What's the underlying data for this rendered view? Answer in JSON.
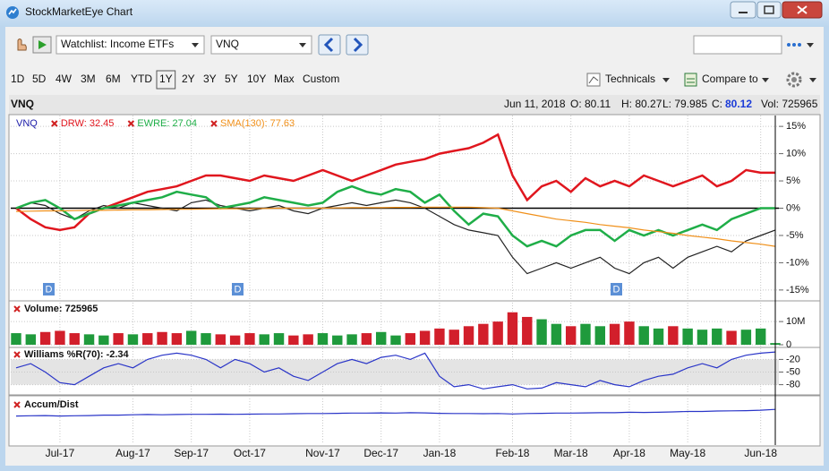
{
  "window": {
    "title": "StockMarketEye Chart"
  },
  "toolbar": {
    "watchlist": "Watchlist: Income ETFs",
    "symbol": "VNQ",
    "ranges": [
      "1D",
      "5D",
      "4W",
      "3M",
      "6M",
      "YTD",
      "1Y",
      "2Y",
      "3Y",
      "5Y",
      "10Y",
      "Max",
      "Custom"
    ],
    "selected_range": "1Y",
    "technicals": "Technicals",
    "compare": "Compare to"
  },
  "quote": {
    "symbol": "VNQ",
    "date": "Jun 11, 2018",
    "open": "O: 80.11",
    "high": "H: 80.27",
    "low": "L: 79.985",
    "close_label": "C:",
    "close": "80.12",
    "volume": "Vol: 725965"
  },
  "dividend_label": "D",
  "chart_data": {
    "categories": [
      null,
      null,
      null,
      "Jul-17",
      null,
      null,
      null,
      null,
      "Aug-17",
      null,
      null,
      null,
      "Sep-17",
      null,
      null,
      null,
      "Oct-17",
      null,
      null,
      null,
      null,
      "Nov-17",
      null,
      null,
      null,
      "Dec-17",
      null,
      null,
      null,
      "Jan-18",
      null,
      null,
      null,
      null,
      "Feb-18",
      null,
      null,
      null,
      "Mar-18",
      null,
      null,
      null,
      "Apr-18",
      null,
      null,
      null,
      "May-18",
      null,
      null,
      null,
      null,
      "Jun-18",
      null
    ],
    "panels": [
      {
        "type": "line",
        "ylim": [
          -16.5,
          16.5
        ],
        "grid": true,
        "yticks": [
          {
            "value": 15,
            "label": "15%"
          },
          {
            "value": 10,
            "label": "10%"
          },
          {
            "value": 5,
            "label": "5%"
          },
          {
            "value": 0,
            "label": "0%"
          },
          {
            "value": -5,
            "label": "-5%"
          },
          {
            "value": -10,
            "label": "-10%"
          },
          {
            "value": -15,
            "label": "-15%"
          }
        ],
        "series": [
          {
            "name": "VNQ",
            "color": "#222222",
            "label_color": "#1a1aa8",
            "values": [
              0,
              1,
              0.5,
              -1,
              -2,
              -0.5,
              0.5,
              0,
              1,
              0.5,
              0,
              -0.5,
              1,
              1.5,
              0.5,
              0,
              -0.5,
              0,
              0.5,
              -0.5,
              -1,
              0,
              0.5,
              1,
              0.5,
              1,
              1.5,
              1,
              0,
              -1.5,
              -3,
              -4,
              -4.5,
              -5,
              -9,
              -12,
              -11,
              -10,
              -11,
              -10,
              -9,
              -11,
              -12,
              -10,
              -9,
              -11,
              -9,
              -8,
              -7,
              -8,
              -6,
              -5,
              -4
            ]
          },
          {
            "name": "DRW: 32.45",
            "color": "#e0161e",
            "values": [
              0,
              -2,
              -3.5,
              -4,
              -3.5,
              -1,
              0,
              1,
              2,
              3,
              3.5,
              4,
              5,
              6,
              6,
              5.5,
              5,
              6,
              5.5,
              5,
              6,
              7,
              6,
              5,
              6,
              7,
              8,
              8.5,
              9,
              10,
              10.5,
              11,
              12,
              13.5,
              6,
              1.5,
              4,
              5,
              3,
              5.5,
              4,
              5,
              4,
              6,
              5,
              4,
              5,
              6,
              4,
              5,
              7,
              6.5,
              6.5
            ]
          },
          {
            "name": "EWRE: 27.04",
            "color": "#1fae48",
            "values": [
              0,
              1,
              1.5,
              0,
              -2,
              -1,
              0,
              0.5,
              1,
              1.5,
              2,
              3,
              2.5,
              2,
              0,
              0.5,
              1,
              2,
              1.5,
              1,
              0.5,
              1,
              3,
              4,
              3,
              2.5,
              3.5,
              3,
              1,
              2.5,
              -0.5,
              -3,
              -1,
              -1.5,
              -5,
              -7,
              -6,
              -7,
              -5,
              -4,
              -4,
              -6,
              -4,
              -5,
              -4,
              -5,
              -4,
              -3,
              -4,
              -2,
              -1,
              0,
              0
            ]
          },
          {
            "name": "SMA(130): 77.63",
            "color": "#f0901a",
            "values": [
              -0.6,
              -0.55,
              -0.5,
              -0.5,
              -0.45,
              -0.4,
              -0.4,
              -0.35,
              -0.3,
              -0.3,
              -0.25,
              -0.2,
              -0.2,
              -0.15,
              -0.1,
              -0.1,
              -0.1,
              -0.05,
              0,
              0,
              0,
              0,
              0.05,
              0.1,
              0.1,
              0.1,
              0.15,
              0.15,
              0.2,
              0.2,
              0.2,
              0.2,
              0.1,
              0,
              -0.5,
              -1,
              -1.5,
              -2,
              -2.3,
              -2.6,
              -3,
              -3.3,
              -3.6,
              -4,
              -4.3,
              -4.6,
              -5,
              -5.3,
              -5.6,
              -6,
              -6.3,
              -6.6,
              -7
            ]
          }
        ]
      },
      {
        "type": "bar",
        "title": "Volume: 725965",
        "ylim": [
          0,
          17000000
        ],
        "grid": true,
        "yticks": [
          {
            "value": 10000000,
            "label": "10M"
          },
          0
        ],
        "up_color": "#1f9a3c",
        "down_color": "#d21f2b",
        "values": [
          5000000,
          4500000,
          5500000,
          6000000,
          5000000,
          4500000,
          4000000,
          5000000,
          4500000,
          5000000,
          5500000,
          5000000,
          6000000,
          5000000,
          4500000,
          4000000,
          5000000,
          4500000,
          5000000,
          4000000,
          4500000,
          5000000,
          4000000,
          4500000,
          5000000,
          5500000,
          4000000,
          5000000,
          6000000,
          7000000,
          6500000,
          8000000,
          9000000,
          10000000,
          14000000,
          12000000,
          11000000,
          9000000,
          8000000,
          9000000,
          8000000,
          9000000,
          10000000,
          8000000,
          7000000,
          8000000,
          7000000,
          6500000,
          7000000,
          6000000,
          6500000,
          7000000,
          725965
        ]
      },
      {
        "type": "line",
        "title": "Williams %R(70): -2.34",
        "ylim": [
          -100,
          0
        ],
        "grid": true,
        "yticks": [
          -20,
          -50,
          -80
        ],
        "band": [
          -80,
          -20
        ],
        "series": [
          {
            "color": "#2a35c8",
            "values": [
              -40,
              -30,
              -50,
              -75,
              -80,
              -60,
              -40,
              -30,
              -40,
              -20,
              -10,
              -5,
              -10,
              -20,
              -40,
              -20,
              -30,
              -50,
              -40,
              -60,
              -70,
              -50,
              -30,
              -20,
              -30,
              -15,
              -10,
              -20,
              -5,
              -60,
              -85,
              -80,
              -90,
              -85,
              -80,
              -90,
              -88,
              -75,
              -80,
              -85,
              -70,
              -80,
              -85,
              -70,
              -60,
              -55,
              -40,
              -30,
              -40,
              -20,
              -10,
              -5,
              -2.34
            ]
          }
        ]
      },
      {
        "type": "line",
        "title": "Accum/Dist",
        "ylim": [
          0,
          100
        ],
        "grid": false,
        "yticks": [],
        "series": [
          {
            "color": "#2a35c8",
            "values": [
              64,
              64.5,
              65,
              64,
              64.5,
              65,
              66,
              66,
              67,
              67.5,
              67,
              67.5,
              68,
              68,
              68.5,
              68,
              68.5,
              69,
              69,
              69.5,
              70,
              70,
              70.5,
              71,
              71,
              71.5,
              71,
              72,
              71.5,
              70.5,
              70,
              70,
              69.5,
              70,
              69,
              70,
              70.5,
              71,
              71,
              71.5,
              72,
              72,
              73,
              72.5,
              73,
              74,
              75,
              75,
              76,
              76.5,
              77,
              78,
              80
            ]
          }
        ]
      }
    ]
  }
}
